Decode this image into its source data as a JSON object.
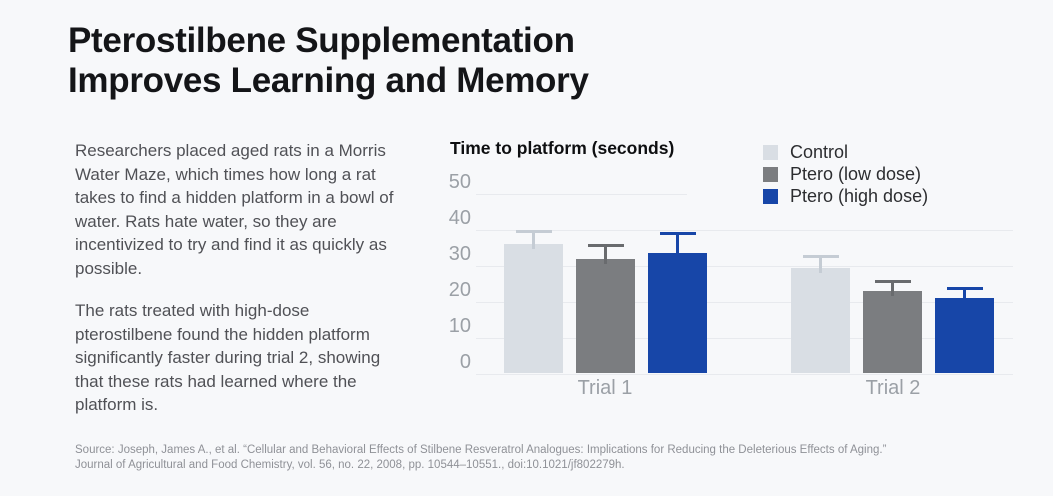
{
  "title": {
    "line1": "Pterostilbene Supplementation",
    "line2": "Improves Learning and Memory"
  },
  "intro": {
    "paragraph1": "Researchers placed aged rats in a Morris Water Maze, which times how long a rat takes to find a hidden platform in a bowl of water. Rats hate water, so they are incentivized to try and find it as quickly as possible.",
    "paragraph2": "The rats treated with high-dose pterostilbene found the hidden platform significantly faster during trial 2, showing that these rats had learned where the platform is."
  },
  "source": {
    "line1": "Source: Joseph, James A., et al. “Cellular and Behavioral Effects of Stilbene Resveratrol Analogues: Implications for Reducing the Deleterious Effects of Aging.”",
    "line2": "Journal of Agricultural and Food Chemistry, vol. 56, no. 22, 2008, pp. 10544–10551., doi:10.1021/jf802279h."
  },
  "chart_data": {
    "type": "bar",
    "title": "Time to platform (seconds)",
    "categories": [
      "Trial 1",
      "Trial 2"
    ],
    "series": [
      {
        "name": "Control",
        "color": "#d9dee4",
        "error_color": "#c5ccd4",
        "values": [
          36,
          29.5
        ],
        "error_upper": [
          40,
          33
        ]
      },
      {
        "name": "Ptero (low dose)",
        "color": "#7b7d80",
        "error_color": "#696b6e",
        "values": [
          32,
          23
        ],
        "error_upper": [
          36,
          26
        ]
      },
      {
        "name": "Ptero (high dose)",
        "color": "#1746a8",
        "error_color": "#1746a8",
        "values": [
          33.5,
          21
        ],
        "error_upper": [
          39.5,
          24
        ]
      }
    ],
    "yticks": [
      0,
      10,
      20,
      30,
      40,
      50
    ],
    "ylim": [
      0,
      50
    ],
    "grid": true,
    "legend_position": "top-right",
    "background": "#f7f8fa"
  }
}
